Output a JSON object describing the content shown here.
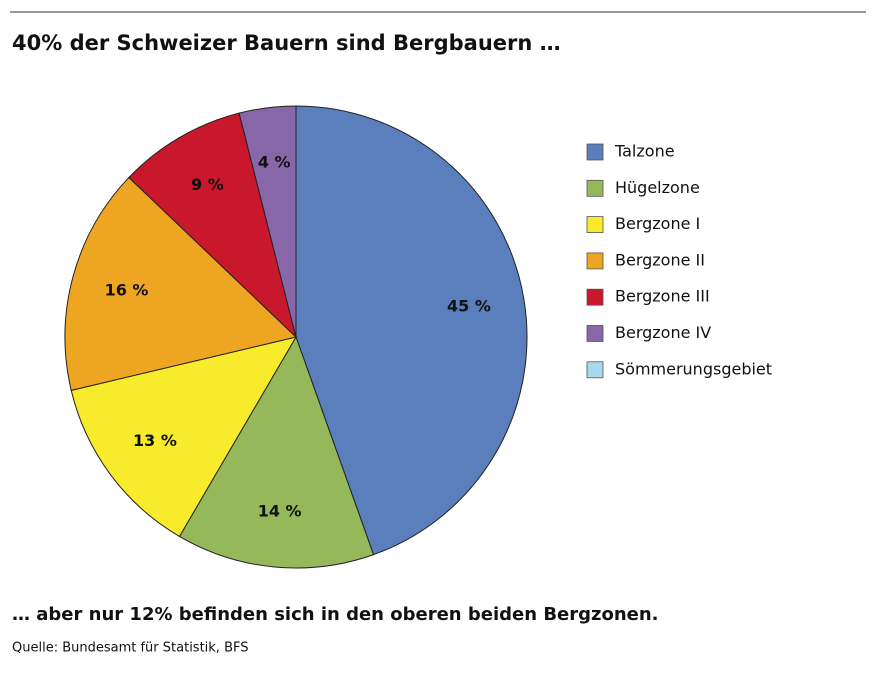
{
  "chart_data": {
    "type": "pie",
    "title": "40% der Schweizer Bauern sind Bergbauern …",
    "categories": [
      "Talzone",
      "Hügelzone",
      "Bergzone I",
      "Bergzone II",
      "Bergzone III",
      "Bergzone IV",
      "Sömmerungsgebiet"
    ],
    "values": [
      45,
      14,
      13,
      16,
      9,
      4,
      0
    ],
    "value_labels": [
      "45 %",
      "14 %",
      "13 %",
      "16 %",
      "9 %",
      "4 %",
      null
    ],
    "colors": [
      "#5a7fbc",
      "#95b95a",
      "#f7eb2b",
      "#eea522",
      "#c9182b",
      "#8767a8",
      "#a8d9f0"
    ],
    "annotation": "… aber nur 12% befinden sich in den oberen beiden Bergzonen.",
    "source": "Quelle:  Bundesamt für Statistik, BFS"
  }
}
